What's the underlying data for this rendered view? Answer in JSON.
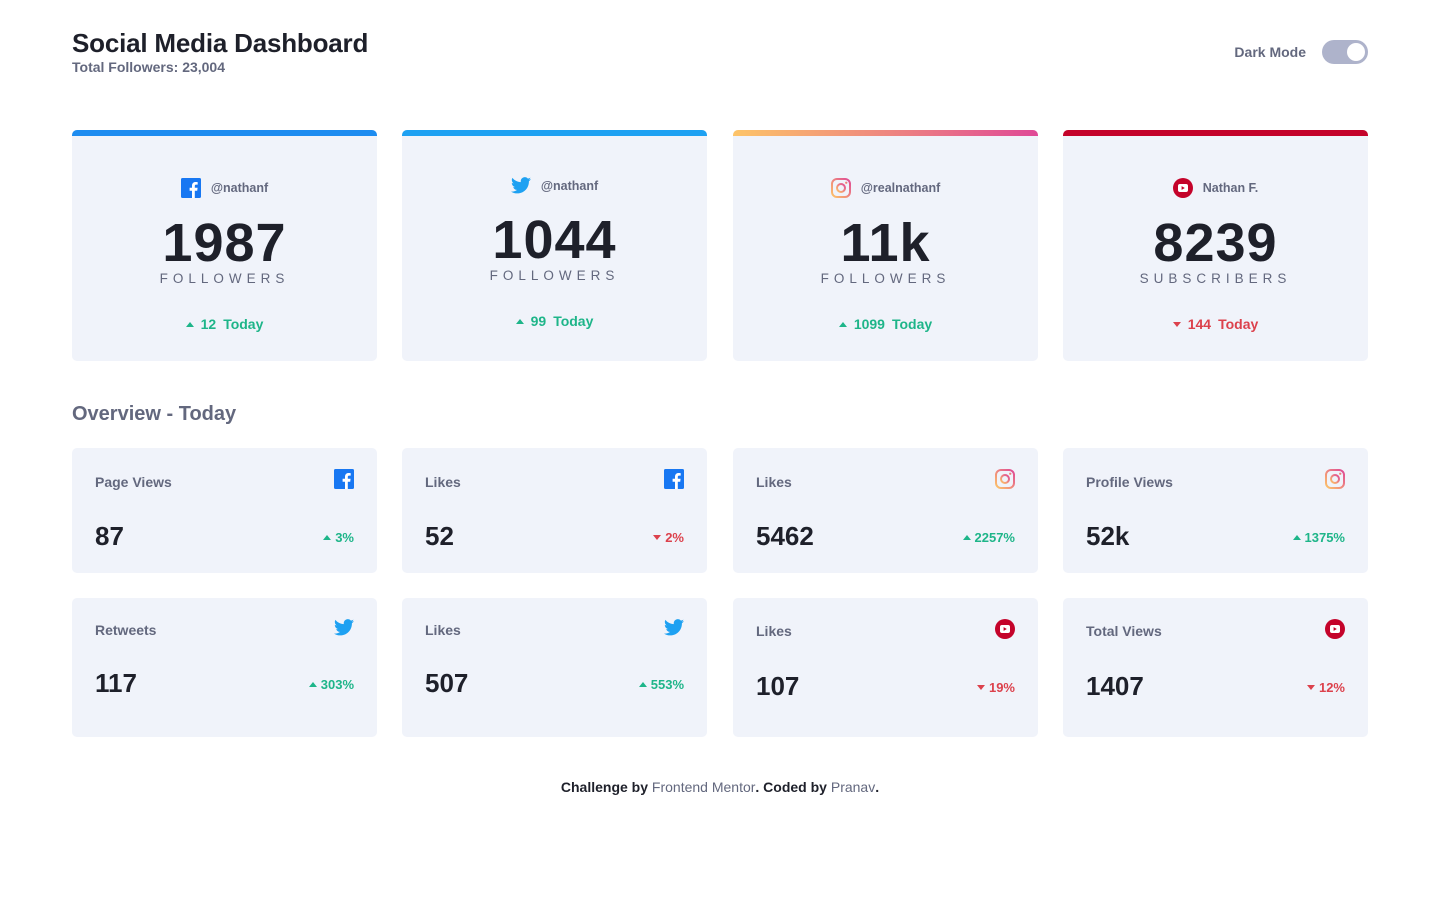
{
  "header": {
    "title": "Social Media Dashboard",
    "total_followers": "Total Followers: 23,004",
    "dark_mode_label": "Dark Mode"
  },
  "followers": [
    {
      "platform": "facebook",
      "handle": "@nathanf",
      "count": "1987",
      "unit": "FOLLOWERS",
      "delta": "12",
      "today": "Today",
      "trend": "up",
      "bar_color": "#1d8cf0"
    },
    {
      "platform": "twitter",
      "handle": "@nathanf",
      "count": "1044",
      "unit": "FOLLOWERS",
      "delta": "99",
      "today": "Today",
      "trend": "up",
      "bar_color": "#1ea1f2"
    },
    {
      "platform": "instagram",
      "handle": "@realnathanf",
      "count": "11k",
      "unit": "FOLLOWERS",
      "delta": "1099",
      "today": "Today",
      "trend": "up",
      "bar_color": "gradient"
    },
    {
      "platform": "youtube",
      "handle": "Nathan F.",
      "count": "8239",
      "unit": "SUBSCRIBERS",
      "delta": "144",
      "today": "Today",
      "trend": "down",
      "bar_color": "#c4032a"
    }
  ],
  "overview": {
    "title": "Overview - Today",
    "cards": [
      {
        "label": "Page Views",
        "platform": "facebook",
        "value": "87",
        "pct": "3%",
        "trend": "up"
      },
      {
        "label": "Likes",
        "platform": "facebook",
        "value": "52",
        "pct": "2%",
        "trend": "down"
      },
      {
        "label": "Likes",
        "platform": "instagram",
        "value": "5462",
        "pct": "2257%",
        "trend": "up"
      },
      {
        "label": "Profile Views",
        "platform": "instagram",
        "value": "52k",
        "pct": "1375%",
        "trend": "up"
      },
      {
        "label": "Retweets",
        "platform": "twitter",
        "value": "117",
        "pct": "303%",
        "trend": "up"
      },
      {
        "label": "Likes",
        "platform": "twitter",
        "value": "507",
        "pct": "553%",
        "trend": "up"
      },
      {
        "label": "Likes",
        "platform": "youtube",
        "value": "107",
        "pct": "19%",
        "trend": "down"
      },
      {
        "label": "Total Views",
        "platform": "youtube",
        "value": "1407",
        "pct": "12%",
        "trend": "down"
      }
    ]
  },
  "footer": {
    "prefix": "Challenge by ",
    "link1": "Frontend Mentor",
    "middle": ". Coded by ",
    "link2": "Pranav",
    "suffix": "."
  },
  "colors": {
    "up": "#1eb589",
    "down": "#dc414c",
    "card_bg": "#f0f3fa",
    "muted_text": "#63687e",
    "toggle": "#aeb3cb"
  }
}
